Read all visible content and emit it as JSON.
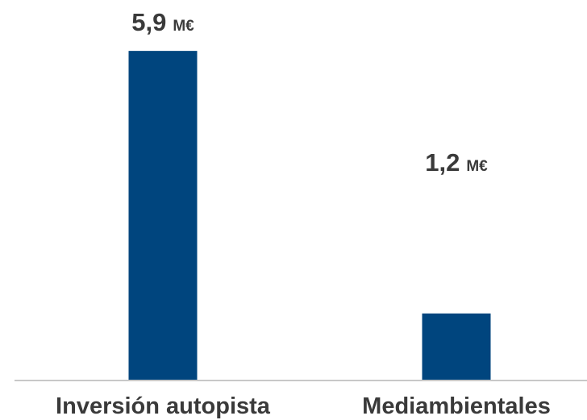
{
  "chart_data": {
    "type": "bar",
    "categories": [
      "Inversión autopista",
      "Mediambientales"
    ],
    "values": [
      5.9,
      1.2
    ],
    "value_labels": [
      "5,9",
      "1,2"
    ],
    "unit": "M€",
    "title": "",
    "xlabel": "",
    "ylabel": "",
    "grid": false,
    "legend": "none",
    "bar_color": "#00457e",
    "axis_color": "#c8c8c8",
    "text_color": "#3a3a3a"
  }
}
